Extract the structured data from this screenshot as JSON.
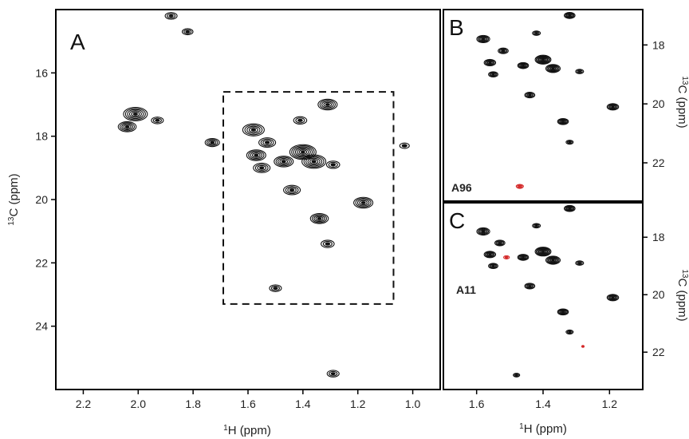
{
  "colors": {
    "contour": "#111111",
    "highlight": "#d42a2a",
    "frame": "#000000",
    "background": "#ffffff"
  },
  "chart_data": [
    {
      "panel": "A",
      "type": "scatter",
      "plot_kind": "2D NMR contour spectrum",
      "xlabel_sup": "1",
      "xlabel_main": "H (ppm)",
      "ylabel_sup": "13",
      "ylabel_main": "C (ppm)",
      "xlim": [
        2.3,
        0.9
      ],
      "ylim": [
        14.0,
        26.0
      ],
      "x_reversed": true,
      "y_reversed": true,
      "xticks": [
        "2.2",
        "2.0",
        "1.8",
        "1.6",
        "1.4",
        "1.2",
        "1.0"
      ],
      "yticks": [
        "16",
        "18",
        "20",
        "22",
        "24"
      ],
      "grid": false,
      "highlight_box": {
        "x_range": [
          1.69,
          1.07
        ],
        "y_range": [
          16.6,
          23.3
        ]
      },
      "peaks": [
        {
          "x": 1.88,
          "y": 14.2,
          "size": 1.0
        },
        {
          "x": 1.82,
          "y": 14.7,
          "size": 0.9
        },
        {
          "x": 2.01,
          "y": 17.3,
          "size": 2.0
        },
        {
          "x": 2.04,
          "y": 17.7,
          "size": 1.5
        },
        {
          "x": 1.93,
          "y": 17.5,
          "size": 1.0
        },
        {
          "x": 1.73,
          "y": 18.2,
          "size": 1.2
        },
        {
          "x": 1.58,
          "y": 17.8,
          "size": 1.8
        },
        {
          "x": 1.53,
          "y": 18.2,
          "size": 1.4
        },
        {
          "x": 1.57,
          "y": 18.6,
          "size": 1.6
        },
        {
          "x": 1.55,
          "y": 19.0,
          "size": 1.4
        },
        {
          "x": 1.47,
          "y": 18.8,
          "size": 1.6
        },
        {
          "x": 1.4,
          "y": 18.5,
          "size": 2.2
        },
        {
          "x": 1.36,
          "y": 18.8,
          "size": 2.0
        },
        {
          "x": 1.44,
          "y": 19.7,
          "size": 1.4
        },
        {
          "x": 1.41,
          "y": 17.5,
          "size": 1.1
        },
        {
          "x": 1.31,
          "y": 17.0,
          "size": 1.6
        },
        {
          "x": 1.29,
          "y": 18.9,
          "size": 1.1
        },
        {
          "x": 1.34,
          "y": 20.6,
          "size": 1.5
        },
        {
          "x": 1.18,
          "y": 20.1,
          "size": 1.6
        },
        {
          "x": 1.31,
          "y": 21.4,
          "size": 1.1
        },
        {
          "x": 1.03,
          "y": 18.3,
          "size": 0.8
        },
        {
          "x": 1.5,
          "y": 22.8,
          "size": 1.0
        },
        {
          "x": 1.29,
          "y": 25.5,
          "size": 1.0
        }
      ]
    },
    {
      "panel": "B",
      "type": "scatter",
      "plot_kind": "2D NMR contour spectrum",
      "ylabel_sup": "13",
      "ylabel_main": "C (ppm)",
      "xlim": [
        1.7,
        1.1
      ],
      "ylim": [
        16.8,
        23.3
      ],
      "x_reversed": true,
      "y_reversed": true,
      "yticks": [
        "18",
        "20",
        "22"
      ],
      "grid": false,
      "peak_labels": [
        {
          "text": "A96",
          "color": "#d42a2a"
        }
      ],
      "peaks": [
        {
          "x": 1.58,
          "y": 17.8,
          "size": 1.8
        },
        {
          "x": 1.52,
          "y": 18.2,
          "size": 1.4
        },
        {
          "x": 1.56,
          "y": 18.6,
          "size": 1.6
        },
        {
          "x": 1.55,
          "y": 19.0,
          "size": 1.3
        },
        {
          "x": 1.46,
          "y": 18.7,
          "size": 1.5
        },
        {
          "x": 1.4,
          "y": 18.5,
          "size": 2.2
        },
        {
          "x": 1.37,
          "y": 18.8,
          "size": 2.0
        },
        {
          "x": 1.44,
          "y": 19.7,
          "size": 1.4
        },
        {
          "x": 1.42,
          "y": 17.6,
          "size": 1.1
        },
        {
          "x": 1.32,
          "y": 17.0,
          "size": 1.5
        },
        {
          "x": 1.29,
          "y": 18.9,
          "size": 1.1
        },
        {
          "x": 1.34,
          "y": 20.6,
          "size": 1.5
        },
        {
          "x": 1.19,
          "y": 20.1,
          "size": 1.6
        },
        {
          "x": 1.32,
          "y": 21.3,
          "size": 1.0
        },
        {
          "x": 1.47,
          "y": 22.8,
          "size": 1.0,
          "highlight": true
        }
      ]
    },
    {
      "panel": "C",
      "type": "scatter",
      "plot_kind": "2D NMR contour spectrum",
      "xlabel_sup": "1",
      "xlabel_main": "H (ppm)",
      "ylabel_sup": "13",
      "ylabel_main": "C (ppm)",
      "xlim": [
        1.7,
        1.1
      ],
      "ylim": [
        16.8,
        23.3
      ],
      "x_reversed": true,
      "y_reversed": true,
      "xticks": [
        "1.6",
        "1.4",
        "1.2"
      ],
      "yticks": [
        "18",
        "20",
        "22"
      ],
      "grid": false,
      "peak_labels": [
        {
          "text": "A11",
          "color": "#d42a2a"
        }
      ],
      "peaks": [
        {
          "x": 1.58,
          "y": 17.8,
          "size": 1.8
        },
        {
          "x": 1.53,
          "y": 18.2,
          "size": 1.4
        },
        {
          "x": 1.56,
          "y": 18.6,
          "size": 1.6
        },
        {
          "x": 1.55,
          "y": 19.0,
          "size": 1.3
        },
        {
          "x": 1.46,
          "y": 18.7,
          "size": 1.5
        },
        {
          "x": 1.4,
          "y": 18.5,
          "size": 2.2
        },
        {
          "x": 1.37,
          "y": 18.8,
          "size": 2.0
        },
        {
          "x": 1.44,
          "y": 19.7,
          "size": 1.4
        },
        {
          "x": 1.42,
          "y": 17.6,
          "size": 1.1
        },
        {
          "x": 1.32,
          "y": 17.0,
          "size": 1.5
        },
        {
          "x": 1.29,
          "y": 18.9,
          "size": 1.1
        },
        {
          "x": 1.34,
          "y": 20.6,
          "size": 1.5
        },
        {
          "x": 1.19,
          "y": 20.1,
          "size": 1.6
        },
        {
          "x": 1.32,
          "y": 21.3,
          "size": 1.0
        },
        {
          "x": 1.48,
          "y": 22.8,
          "size": 0.9
        },
        {
          "x": 1.51,
          "y": 18.7,
          "size": 0.8,
          "highlight": true
        },
        {
          "x": 1.28,
          "y": 21.8,
          "size": 0.3,
          "highlight": true
        }
      ]
    }
  ]
}
